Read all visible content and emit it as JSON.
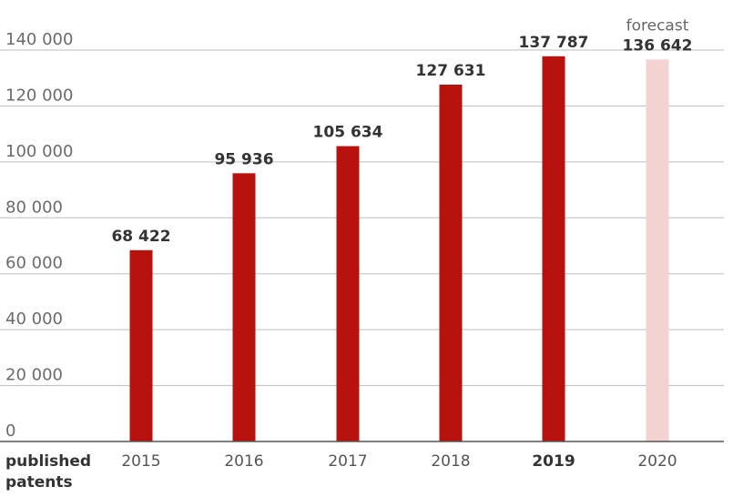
{
  "chart_data": {
    "type": "bar",
    "categories": [
      "2015",
      "2016",
      "2017",
      "2018",
      "2019",
      "2020"
    ],
    "values": [
      68422,
      95936,
      105634,
      127631,
      137787,
      136642
    ],
    "value_labels": [
      "68 422",
      "95 936",
      "105 634",
      "127 631",
      "137 787",
      "136 642"
    ],
    "forecast_note": "forecast",
    "xlabel": [
      "published",
      "patents"
    ],
    "y_ticks": [
      0,
      20000,
      40000,
      60000,
      80000,
      100000,
      120000,
      140000
    ],
    "y_tick_labels": [
      "0",
      "20 000",
      "40 000",
      "60 000",
      "80 000",
      "100 000",
      "120 000",
      "140 000"
    ],
    "ylim": [
      0,
      140000
    ],
    "grid": true,
    "highlight_category": "2019",
    "forecast_category": "2020",
    "colors": {
      "bar": "#b8120f",
      "forecast_bar": "#f4d2d2",
      "grid": "#bdbdbd",
      "baseline": "#555555"
    }
  }
}
